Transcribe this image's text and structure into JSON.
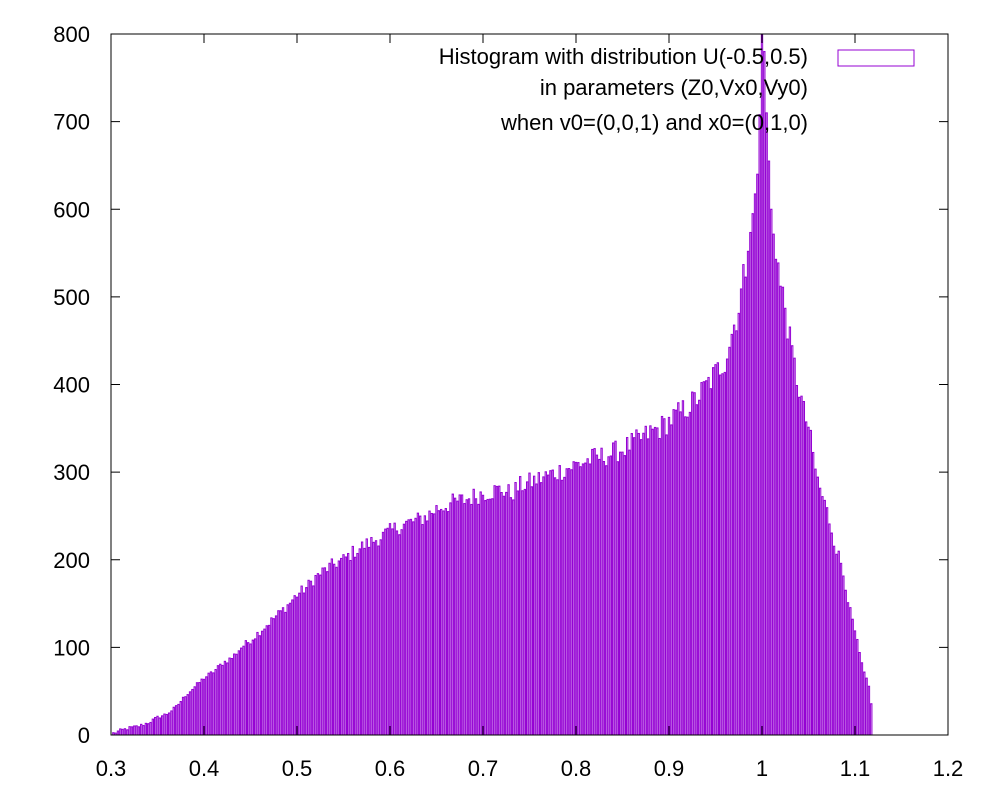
{
  "chart_data": {
    "type": "bar",
    "style": "histogram impulses (outlined)",
    "legend": {
      "lines": [
        "Histogram with distribution U(-0.5,0.5)",
        "in parameters (Z0,Vx0,Vy0)",
        "when v0=(0,0,1) and x0=(0,1,0)"
      ],
      "placement": "top-right"
    },
    "xlabel": "",
    "ylabel": "",
    "xlim": [
      0.3,
      1.2
    ],
    "ylim": [
      0,
      800
    ],
    "xticks": [
      "0.3",
      "0.4",
      "0.5",
      "0.6",
      "0.7",
      "0.8",
      "0.9",
      "1",
      "1.1",
      "1.2"
    ],
    "yticks": [
      "0",
      "100",
      "200",
      "300",
      "400",
      "500",
      "600",
      "700",
      "800"
    ],
    "grid": false,
    "bin_width": 0.0025,
    "series": [
      {
        "color": "#9400d3",
        "bins": [
          {
            "x": 0.3025,
            "y": 2
          },
          {
            "x": 0.305,
            "y": 3
          },
          {
            "x": 0.3075,
            "y": 4
          },
          {
            "x": 0.31,
            "y": 5
          },
          {
            "x": 0.32,
            "y": 8
          },
          {
            "x": 0.33,
            "y": 10
          },
          {
            "x": 0.34,
            "y": 14
          },
          {
            "x": 0.35,
            "y": 20
          },
          {
            "x": 0.36,
            "y": 24
          },
          {
            "x": 0.37,
            "y": 32
          },
          {
            "x": 0.38,
            "y": 45
          },
          {
            "x": 0.39,
            "y": 55
          },
          {
            "x": 0.4,
            "y": 65
          },
          {
            "x": 0.41,
            "y": 72
          },
          {
            "x": 0.42,
            "y": 82
          },
          {
            "x": 0.43,
            "y": 88
          },
          {
            "x": 0.44,
            "y": 100
          },
          {
            "x": 0.45,
            "y": 108
          },
          {
            "x": 0.46,
            "y": 118
          },
          {
            "x": 0.47,
            "y": 128
          },
          {
            "x": 0.48,
            "y": 138
          },
          {
            "x": 0.49,
            "y": 148
          },
          {
            "x": 0.5,
            "y": 160
          },
          {
            "x": 0.51,
            "y": 168
          },
          {
            "x": 0.52,
            "y": 180
          },
          {
            "x": 0.53,
            "y": 188
          },
          {
            "x": 0.54,
            "y": 195
          },
          {
            "x": 0.55,
            "y": 200
          },
          {
            "x": 0.56,
            "y": 208
          },
          {
            "x": 0.57,
            "y": 215
          },
          {
            "x": 0.58,
            "y": 220
          },
          {
            "x": 0.59,
            "y": 226
          },
          {
            "x": 0.6,
            "y": 232
          },
          {
            "x": 0.61,
            "y": 238
          },
          {
            "x": 0.62,
            "y": 242
          },
          {
            "x": 0.63,
            "y": 245
          },
          {
            "x": 0.64,
            "y": 250
          },
          {
            "x": 0.65,
            "y": 258
          },
          {
            "x": 0.66,
            "y": 262
          },
          {
            "x": 0.67,
            "y": 266
          },
          {
            "x": 0.68,
            "y": 268
          },
          {
            "x": 0.69,
            "y": 272
          },
          {
            "x": 0.7,
            "y": 276
          },
          {
            "x": 0.71,
            "y": 278
          },
          {
            "x": 0.72,
            "y": 280
          },
          {
            "x": 0.73,
            "y": 275
          },
          {
            "x": 0.74,
            "y": 284
          },
          {
            "x": 0.75,
            "y": 288
          },
          {
            "x": 0.76,
            "y": 292
          },
          {
            "x": 0.77,
            "y": 296
          },
          {
            "x": 0.78,
            "y": 300
          },
          {
            "x": 0.79,
            "y": 304
          },
          {
            "x": 0.8,
            "y": 308
          },
          {
            "x": 0.81,
            "y": 312
          },
          {
            "x": 0.82,
            "y": 316
          },
          {
            "x": 0.83,
            "y": 318
          },
          {
            "x": 0.84,
            "y": 322
          },
          {
            "x": 0.85,
            "y": 326
          },
          {
            "x": 0.86,
            "y": 332
          },
          {
            "x": 0.87,
            "y": 338
          },
          {
            "x": 0.88,
            "y": 345
          },
          {
            "x": 0.89,
            "y": 350
          },
          {
            "x": 0.9,
            "y": 358
          },
          {
            "x": 0.91,
            "y": 366
          },
          {
            "x": 0.92,
            "y": 374
          },
          {
            "x": 0.93,
            "y": 384
          },
          {
            "x": 0.94,
            "y": 398
          },
          {
            "x": 0.95,
            "y": 412
          },
          {
            "x": 0.96,
            "y": 428
          },
          {
            "x": 0.965,
            "y": 448
          },
          {
            "x": 0.97,
            "y": 468
          },
          {
            "x": 0.975,
            "y": 488
          },
          {
            "x": 0.98,
            "y": 520
          },
          {
            "x": 0.985,
            "y": 552
          },
          {
            "x": 0.99,
            "y": 595
          },
          {
            "x": 0.995,
            "y": 640
          },
          {
            "x": 0.9975,
            "y": 708
          },
          {
            "x": 1.0,
            "y": 800
          },
          {
            "x": 1.0025,
            "y": 780
          },
          {
            "x": 1.005,
            "y": 710
          },
          {
            "x": 1.01,
            "y": 600
          },
          {
            "x": 1.015,
            "y": 560
          },
          {
            "x": 1.02,
            "y": 510
          },
          {
            "x": 1.025,
            "y": 490
          },
          {
            "x": 1.03,
            "y": 448
          },
          {
            "x": 1.035,
            "y": 420
          },
          {
            "x": 1.04,
            "y": 395
          },
          {
            "x": 1.045,
            "y": 368
          },
          {
            "x": 1.05,
            "y": 352
          },
          {
            "x": 1.055,
            "y": 318
          },
          {
            "x": 1.06,
            "y": 290
          },
          {
            "x": 1.065,
            "y": 272
          },
          {
            "x": 1.07,
            "y": 255
          },
          {
            "x": 1.075,
            "y": 235
          },
          {
            "x": 1.08,
            "y": 212
          },
          {
            "x": 1.085,
            "y": 196
          },
          {
            "x": 1.09,
            "y": 172
          },
          {
            "x": 1.095,
            "y": 140
          },
          {
            "x": 1.1,
            "y": 118
          },
          {
            "x": 1.105,
            "y": 92
          },
          {
            "x": 1.11,
            "y": 70
          },
          {
            "x": 1.115,
            "y": 55
          },
          {
            "x": 1.1175,
            "y": 35
          }
        ]
      }
    ]
  }
}
